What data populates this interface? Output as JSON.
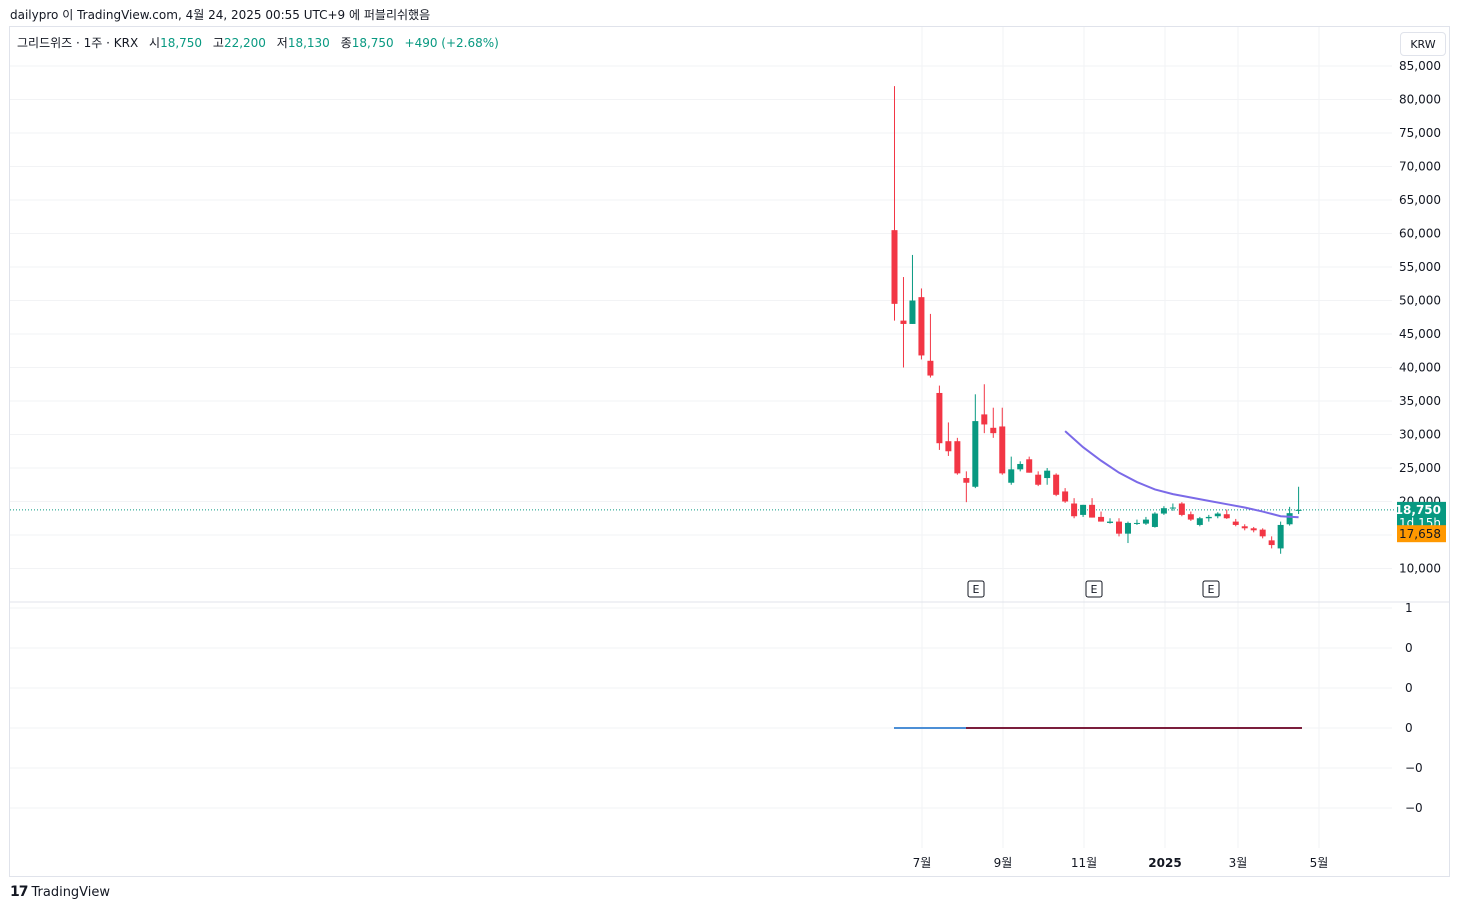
{
  "header": {
    "publisher": "dailypro",
    "platform": "TradingView.com",
    "date": "4월 24, 2025 00:55 UTC+9",
    "text_parts": [
      "이",
      "에 퍼블리쉬했음"
    ]
  },
  "legend": {
    "symbol": "그리드위즈 · 1주 · KRX",
    "open_label": "시",
    "open": "18,750",
    "high_label": "고",
    "high": "22,200",
    "low_label": "저",
    "low": "18,130",
    "close_label": "종",
    "close": "18,750",
    "change": "+490 (+2.68%)"
  },
  "currency_button": "KRW",
  "price_badge": {
    "price": "18,750",
    "countdown": "1d 15h",
    "ma_value": "17,658"
  },
  "footer": {
    "logo": "TradingView"
  },
  "colors": {
    "up": "#089981",
    "down": "#f23645",
    "ma": "#7b6ae8",
    "ma_badge": "#ff9800",
    "indicator_a": "#4c8fd6",
    "indicator_b": "#7b1e3c"
  },
  "chart_data": {
    "type": "candlestick",
    "interval": "1 week",
    "currency": "KRW",
    "y_ticks": [
      "85,000",
      "80,000",
      "75,000",
      "70,000",
      "65,000",
      "60,000",
      "55,000",
      "50,000",
      "45,000",
      "40,000",
      "35,000",
      "30,000",
      "25,000",
      "20,000",
      "10,000"
    ],
    "x_ticks": [
      "7월",
      "9월",
      "11월",
      "2025",
      "3월",
      "5월"
    ],
    "lower_pane_ticks": [
      "1",
      "0",
      "0",
      "0",
      "−0",
      "−0"
    ],
    "earnings_markers": [
      "E",
      "E",
      "E"
    ],
    "last_price": 18750,
    "ma_last": 17658,
    "candles": [
      {
        "o": 60500,
        "h": 82000,
        "l": 47000,
        "c": 49500
      },
      {
        "o": 47000,
        "h": 53500,
        "l": 40000,
        "c": 46500
      },
      {
        "o": 46500,
        "h": 56800,
        "l": 46500,
        "c": 50000
      },
      {
        "o": 50500,
        "h": 51800,
        "l": 41200,
        "c": 41800
      },
      {
        "o": 41000,
        "h": 48000,
        "l": 38500,
        "c": 38800
      },
      {
        "o": 36200,
        "h": 37300,
        "l": 27700,
        "c": 28700
      },
      {
        "o": 29000,
        "h": 31800,
        "l": 26800,
        "c": 27500
      },
      {
        "o": 29000,
        "h": 29500,
        "l": 24000,
        "c": 24200
      },
      {
        "o": 23500,
        "h": 24500,
        "l": 19900,
        "c": 22800
      },
      {
        "o": 22200,
        "h": 36000,
        "l": 22000,
        "c": 32000
      },
      {
        "o": 33000,
        "h": 37500,
        "l": 30200,
        "c": 31500
      },
      {
        "o": 31000,
        "h": 34000,
        "l": 29500,
        "c": 30200
      },
      {
        "o": 31200,
        "h": 34000,
        "l": 24000,
        "c": 24200
      },
      {
        "o": 22800,
        "h": 26700,
        "l": 22500,
        "c": 24800
      },
      {
        "o": 24800,
        "h": 26000,
        "l": 24500,
        "c": 25600
      },
      {
        "o": 26300,
        "h": 26700,
        "l": 24300,
        "c": 24300
      },
      {
        "o": 24000,
        "h": 24500,
        "l": 22300,
        "c": 22500
      },
      {
        "o": 23500,
        "h": 25000,
        "l": 22500,
        "c": 24600
      },
      {
        "o": 24000,
        "h": 24200,
        "l": 20800,
        "c": 21000
      },
      {
        "o": 21500,
        "h": 22000,
        "l": 19800,
        "c": 20000
      },
      {
        "o": 19700,
        "h": 20500,
        "l": 17500,
        "c": 17800
      },
      {
        "o": 18000,
        "h": 19500,
        "l": 17700,
        "c": 19500
      },
      {
        "o": 19500,
        "h": 20500,
        "l": 17600,
        "c": 17600
      },
      {
        "o": 17700,
        "h": 18500,
        "l": 17000,
        "c": 17000
      },
      {
        "o": 16800,
        "h": 17500,
        "l": 16700,
        "c": 17000
      },
      {
        "o": 17000,
        "h": 17500,
        "l": 14800,
        "c": 15200
      },
      {
        "o": 15200,
        "h": 17000,
        "l": 13800,
        "c": 16800
      },
      {
        "o": 16800,
        "h": 17300,
        "l": 16500,
        "c": 16800
      },
      {
        "o": 16700,
        "h": 17700,
        "l": 16500,
        "c": 17300
      },
      {
        "o": 16200,
        "h": 18400,
        "l": 16100,
        "c": 18200
      },
      {
        "o": 18200,
        "h": 19300,
        "l": 18000,
        "c": 19000
      },
      {
        "o": 19000,
        "h": 19700,
        "l": 18600,
        "c": 19100
      },
      {
        "o": 19700,
        "h": 19900,
        "l": 17800,
        "c": 18000
      },
      {
        "o": 18100,
        "h": 18500,
        "l": 17100,
        "c": 17300
      },
      {
        "o": 16500,
        "h": 17700,
        "l": 16300,
        "c": 17500
      },
      {
        "o": 17500,
        "h": 18000,
        "l": 17000,
        "c": 17700
      },
      {
        "o": 17800,
        "h": 18400,
        "l": 17500,
        "c": 18200
      },
      {
        "o": 18100,
        "h": 18800,
        "l": 17400,
        "c": 17500
      },
      {
        "o": 17000,
        "h": 17400,
        "l": 16300,
        "c": 16500
      },
      {
        "o": 16300,
        "h": 16600,
        "l": 15700,
        "c": 16000
      },
      {
        "o": 16000,
        "h": 16200,
        "l": 15400,
        "c": 15700
      },
      {
        "o": 15800,
        "h": 16000,
        "l": 14500,
        "c": 14800
      },
      {
        "o": 14200,
        "h": 14800,
        "l": 13000,
        "c": 13500
      },
      {
        "o": 13000,
        "h": 17000,
        "l": 12200,
        "c": 16500
      },
      {
        "o": 16600,
        "h": 19200,
        "l": 16400,
        "c": 18260
      },
      {
        "o": 18750,
        "h": 22200,
        "l": 18130,
        "c": 18750
      }
    ],
    "ma_series": [
      {
        "i": 19,
        "v": 30500
      },
      {
        "i": 21,
        "v": 28100
      },
      {
        "i": 23,
        "v": 26100
      },
      {
        "i": 25,
        "v": 24300
      },
      {
        "i": 27,
        "v": 22900
      },
      {
        "i": 29,
        "v": 21800
      },
      {
        "i": 31,
        "v": 21100
      },
      {
        "i": 33,
        "v": 20600
      },
      {
        "i": 35,
        "v": 20100
      },
      {
        "i": 37,
        "v": 19600
      },
      {
        "i": 39,
        "v": 19100
      },
      {
        "i": 41,
        "v": 18500
      },
      {
        "i": 43,
        "v": 17800
      },
      {
        "i": 45,
        "v": 17658
      }
    ],
    "indicator": {
      "segment_a_value": 0,
      "segment_b_value": 0
    }
  }
}
